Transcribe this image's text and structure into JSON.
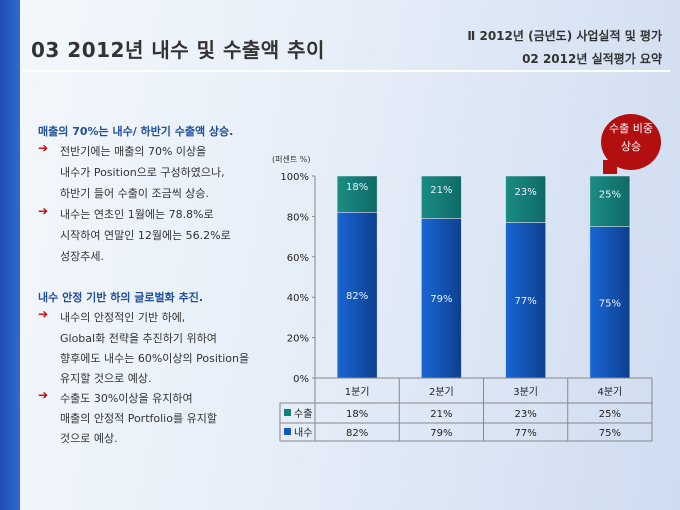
{
  "header": {
    "title": "03  2012년 내수 및 수출액 추이",
    "section": "Ⅱ  2012년 (금년도) 사업실적 및 평가",
    "subsection": "02  2012년 실적평가 요약"
  },
  "left": {
    "heading1": "매출의 70%는 내수/ 하반기 수출액 상승.",
    "lines1": [
      "전반기에는 매출의 70% 이상을",
      "내수가 Position으로 구성하였으나,",
      "하반기 들어 수출이 조금씩 상승.",
      "내수는 연초인 1월에는 78.8%로",
      "시작하여 연말인 12월에는 56.2%로",
      "성장추세."
    ],
    "heading2": "내수 안정 기반 하의 글로벌화 추진.",
    "lines2": [
      "내수의 안정적인 기반 하에,",
      "Global화 전략을 추진하기 위하여",
      "향후에도 내수는 60%이상의 Position을",
      "유지할 것으로 예상.",
      "수출도 30%이상을 유지하여",
      "매출의 안정적 Portfolio를 유지할",
      "것으로 예상."
    ]
  },
  "badge": {
    "line1": "수출 비중",
    "line2": "상승"
  },
  "chart_data": {
    "type": "bar",
    "stacked": true,
    "ylabel": "(퍼센트 %)",
    "ylim": [
      0,
      100
    ],
    "yticks": [
      "0%",
      "20%",
      "40%",
      "60%",
      "80%",
      "100%"
    ],
    "categories": [
      "1분기",
      "2분기",
      "3분기",
      "4분기"
    ],
    "series": [
      {
        "name": "내수",
        "values": [
          82,
          79,
          77,
          75
        ],
        "labels": [
          "82%",
          "79%",
          "77%",
          "75%"
        ],
        "color": "#1858c0"
      },
      {
        "name": "수출",
        "values": [
          18,
          21,
          23,
          25
        ],
        "labels": [
          "18%",
          "21%",
          "23%",
          "25%"
        ],
        "color": "#167f78"
      }
    ],
    "legend": "data-table"
  }
}
